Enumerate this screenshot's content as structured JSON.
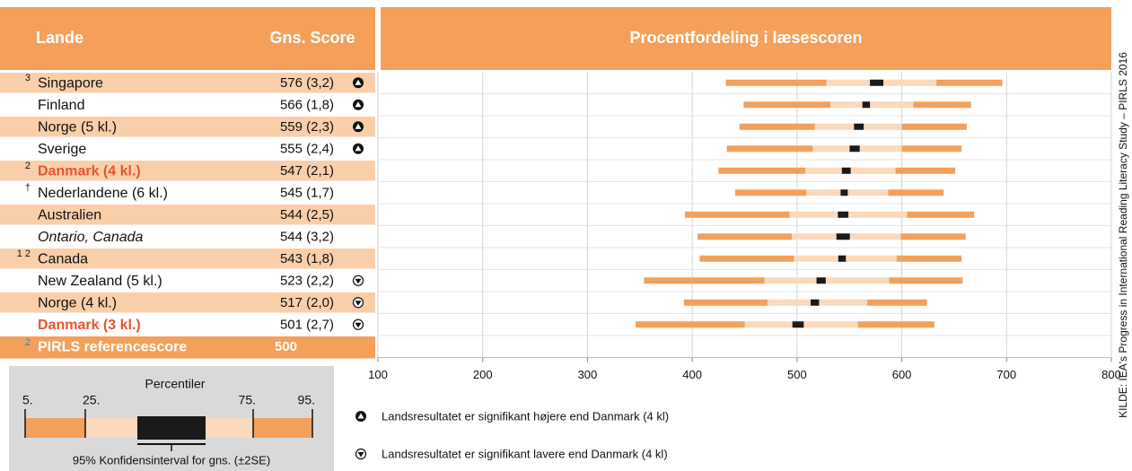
{
  "chart_data": {
    "type": "percentile",
    "title": "Procentfordeling i læsescoren",
    "columns": [
      "Lande",
      "Gns. Score"
    ],
    "notes": [
      "3",
      null,
      null,
      null,
      "2",
      "†",
      null,
      null,
      "1 2",
      null,
      null,
      null
    ],
    "categories": [
      "Singapore",
      "Finland",
      "Norge (5 kl.)",
      "Sverige",
      "Danmark (4 kl.)",
      "Nederlandene (6 kl.)",
      "Australien",
      "Ontario, Canada",
      "Canada",
      "New Zealand (5 kl.)",
      "Norge (4 kl.)",
      "Danmark (3 kl.)"
    ],
    "values": [
      576,
      566,
      559,
      555,
      547,
      545,
      544,
      544,
      543,
      523,
      517,
      501
    ],
    "value_labels": [
      "576 (3,2)",
      "566 (1,8)",
      "559 (2,3)",
      "555 (2,4)",
      "547 (2,1)",
      "545 (1,7)",
      "544 (2,5)",
      "544 (3,2)",
      "543 (1,8)",
      "523 (2,2)",
      "517 (2,0)",
      "501 (2,7)"
    ],
    "se": [
      3.2,
      1.8,
      2.3,
      2.4,
      2.1,
      1.7,
      2.5,
      3.2,
      1.8,
      2.2,
      2.0,
      2.7
    ],
    "p5": [
      432,
      449,
      445,
      433,
      425,
      441,
      393,
      405,
      407,
      354,
      392,
      346
    ],
    "p25": [
      528,
      532,
      517,
      515,
      508,
      509,
      493,
      495,
      497,
      469,
      472,
      450
    ],
    "p75": [
      633,
      611,
      600,
      600,
      594,
      587,
      605,
      599,
      595,
      588,
      567,
      558
    ],
    "p95": [
      696,
      666,
      662,
      657,
      651,
      640,
      669,
      661,
      657,
      658,
      624,
      631
    ],
    "markers": [
      0,
      0,
      0,
      0,
      null,
      null,
      null,
      null,
      null,
      1,
      1,
      1
    ],
    "highlight": [
      4,
      11
    ],
    "italic": [
      7
    ],
    "reference": {
      "note": "2",
      "label": "PIRLS referencescore",
      "value": 500
    },
    "xlim": [
      100,
      800
    ],
    "xticks": [
      100,
      200,
      300,
      400,
      500,
      600,
      700,
      800
    ],
    "grid": true,
    "colors": {
      "header": "#f5a05a",
      "row": "#f9cfaa",
      "outer": "#f3a05c",
      "inner": "#fad9bd",
      "ci": "#1a1a1a",
      "highlight": "#e8552b"
    },
    "legend": [
      "Landsresultatet  er signifikant højere end  Danmark (4 kl)",
      "Landsresultatet er signifikant lavere end Danmark (4 kl)"
    ],
    "key": {
      "title": "Percentiler",
      "labels": [
        "5.",
        "25.",
        "75.",
        "95."
      ],
      "caption": "95% Konfidensinterval for gns.  (±2SE)"
    },
    "source": "KILDE: IEA's Progress in International Reading Literacy Study – PIRLS 2016"
  }
}
